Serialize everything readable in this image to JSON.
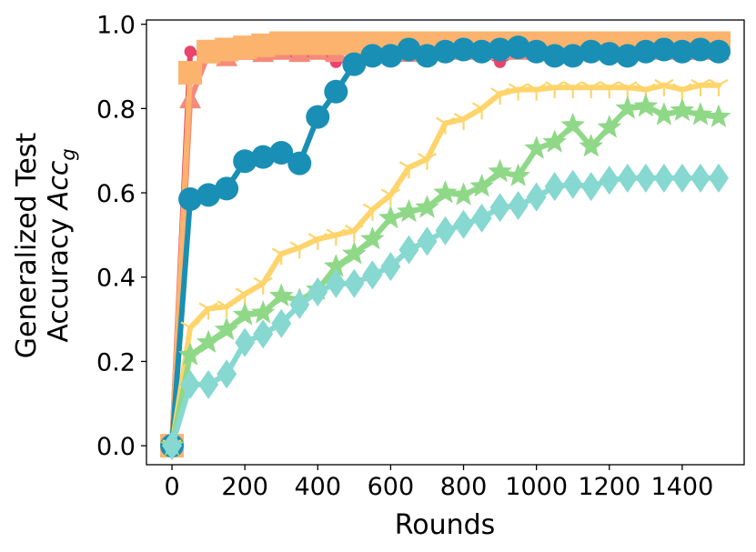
{
  "chart_data": {
    "type": "line",
    "xlabel": "Rounds",
    "ylabel_line1": "Generalized Test",
    "ylabel_line2_text": "Accuracy ",
    "ylabel_line2_math": "Acc",
    "ylabel_line2_sub": "g",
    "xlim": [
      -70,
      1570
    ],
    "ylim": [
      -0.045,
      1.01
    ],
    "xticks": [
      0,
      200,
      400,
      600,
      800,
      1000,
      1200,
      1400
    ],
    "yticks": [
      0.0,
      0.2,
      0.4,
      0.6,
      0.8,
      1.0
    ],
    "xtick_labels": [
      "0",
      "200",
      "400",
      "600",
      "800",
      "1000",
      "1200",
      "1400"
    ],
    "ytick_labels": [
      "0.0",
      "0.2",
      "0.4",
      "0.6",
      "0.8",
      "1.0"
    ],
    "x": [
      0,
      50,
      100,
      150,
      200,
      250,
      300,
      350,
      400,
      450,
      500,
      550,
      600,
      650,
      700,
      750,
      800,
      850,
      900,
      950,
      1000,
      1050,
      1100,
      1150,
      1200,
      1250,
      1300,
      1350,
      1400,
      1450,
      1500
    ],
    "series": [
      {
        "color": "#e8446c",
        "marker": "circle-small",
        "values": [
          0.0,
          0.935,
          0.925,
          0.92,
          0.93,
          0.925,
          0.93,
          0.925,
          0.93,
          0.91,
          0.925,
          0.93,
          0.925,
          0.935,
          0.93,
          0.935,
          0.93,
          0.935,
          0.91,
          0.935,
          0.93,
          0.935,
          0.93,
          0.935,
          0.93,
          0.935,
          0.93,
          0.935,
          0.93,
          0.935,
          0.935
        ]
      },
      {
        "color": "#f58a7a",
        "marker": "triangle",
        "values": [
          0.0,
          0.82,
          0.93,
          0.92,
          0.935,
          0.93,
          0.935,
          0.93,
          0.935,
          0.93,
          0.935,
          0.93,
          0.935,
          0.93,
          0.935,
          0.935,
          0.935,
          0.935,
          0.935,
          0.935,
          0.935,
          0.935,
          0.935,
          0.935,
          0.935,
          0.935,
          0.935,
          0.935,
          0.935,
          0.935,
          0.935
        ]
      },
      {
        "color": "#fbb36e",
        "marker": "square",
        "values": [
          0.0,
          0.885,
          0.935,
          0.94,
          0.945,
          0.95,
          0.955,
          0.955,
          0.955,
          0.955,
          0.955,
          0.955,
          0.955,
          0.955,
          0.955,
          0.955,
          0.955,
          0.955,
          0.955,
          0.955,
          0.955,
          0.955,
          0.955,
          0.955,
          0.955,
          0.955,
          0.955,
          0.955,
          0.955,
          0.955,
          0.955
        ]
      },
      {
        "color": "#1a8fb5",
        "marker": "circle-large",
        "values": [
          0.0,
          0.585,
          0.595,
          0.61,
          0.675,
          0.685,
          0.695,
          0.67,
          0.78,
          0.84,
          0.905,
          0.925,
          0.925,
          0.94,
          0.925,
          0.935,
          0.94,
          0.935,
          0.94,
          0.945,
          0.935,
          0.925,
          0.925,
          0.935,
          0.93,
          0.925,
          0.935,
          0.94,
          0.935,
          0.94,
          0.935
        ]
      },
      {
        "color": "#fed46b",
        "marker": "tri-down",
        "values": [
          0.0,
          0.28,
          0.325,
          0.33,
          0.36,
          0.385,
          0.455,
          0.47,
          0.49,
          0.5,
          0.51,
          0.56,
          0.595,
          0.66,
          0.68,
          0.765,
          0.775,
          0.8,
          0.835,
          0.845,
          0.845,
          0.85,
          0.85,
          0.85,
          0.85,
          0.85,
          0.845,
          0.855,
          0.845,
          0.855,
          0.855
        ]
      },
      {
        "color": "#8fd887",
        "marker": "star",
        "values": [
          0.0,
          0.215,
          0.245,
          0.275,
          0.31,
          0.315,
          0.355,
          0.345,
          0.37,
          0.425,
          0.455,
          0.49,
          0.54,
          0.555,
          0.565,
          0.6,
          0.595,
          0.615,
          0.65,
          0.64,
          0.705,
          0.72,
          0.76,
          0.71,
          0.755,
          0.8,
          0.805,
          0.785,
          0.795,
          0.785,
          0.78
        ]
      },
      {
        "color": "#86d8d0",
        "marker": "diamond",
        "values": [
          0.0,
          0.145,
          0.145,
          0.17,
          0.245,
          0.265,
          0.29,
          0.335,
          0.365,
          0.385,
          0.385,
          0.405,
          0.425,
          0.465,
          0.485,
          0.51,
          0.525,
          0.54,
          0.565,
          0.57,
          0.59,
          0.615,
          0.62,
          0.615,
          0.63,
          0.635,
          0.635,
          0.635,
          0.635,
          0.635,
          0.635
        ]
      }
    ]
  }
}
